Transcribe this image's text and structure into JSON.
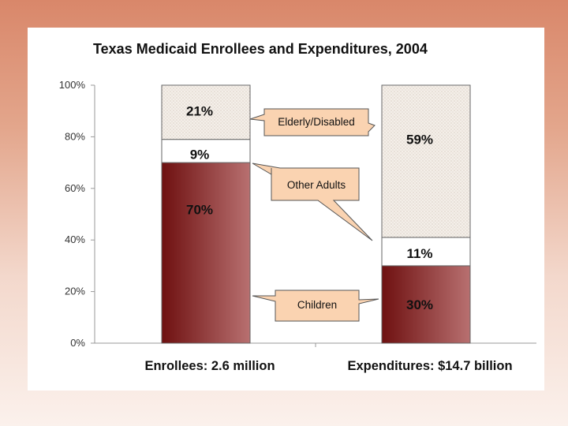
{
  "chart_data": {
    "type": "bar",
    "stacked": true,
    "title": "Texas Medicaid Enrollees and Expenditures, 2004",
    "categories": [
      "Enrollees: 2.6 million",
      "Expenditures: $14.7 billion"
    ],
    "series": [
      {
        "name": "Children",
        "values": [
          70,
          30
        ],
        "labels": [
          "70%",
          "30%"
        ],
        "color": "#9b3b3b"
      },
      {
        "name": "Other Adults",
        "values": [
          9,
          11
        ],
        "labels": [
          "9%",
          "11%"
        ],
        "color": "#ffffff"
      },
      {
        "name": "Elderly/Disabled",
        "values": [
          21,
          59
        ],
        "labels": [
          "21%",
          "59%"
        ],
        "color": "#f1ebe4"
      }
    ],
    "ylim": [
      0,
      100
    ],
    "yticks": [
      "0%",
      "20%",
      "40%",
      "60%",
      "80%",
      "100%"
    ],
    "xlabel": "",
    "ylabel": "",
    "callouts": [
      "Elderly/Disabled",
      "Other Adults",
      "Children"
    ]
  },
  "colors": {
    "children_dark": "#6e1010",
    "children_light": "#b87070",
    "callout_fill": "#fad3b1",
    "background": "#d9876a"
  }
}
